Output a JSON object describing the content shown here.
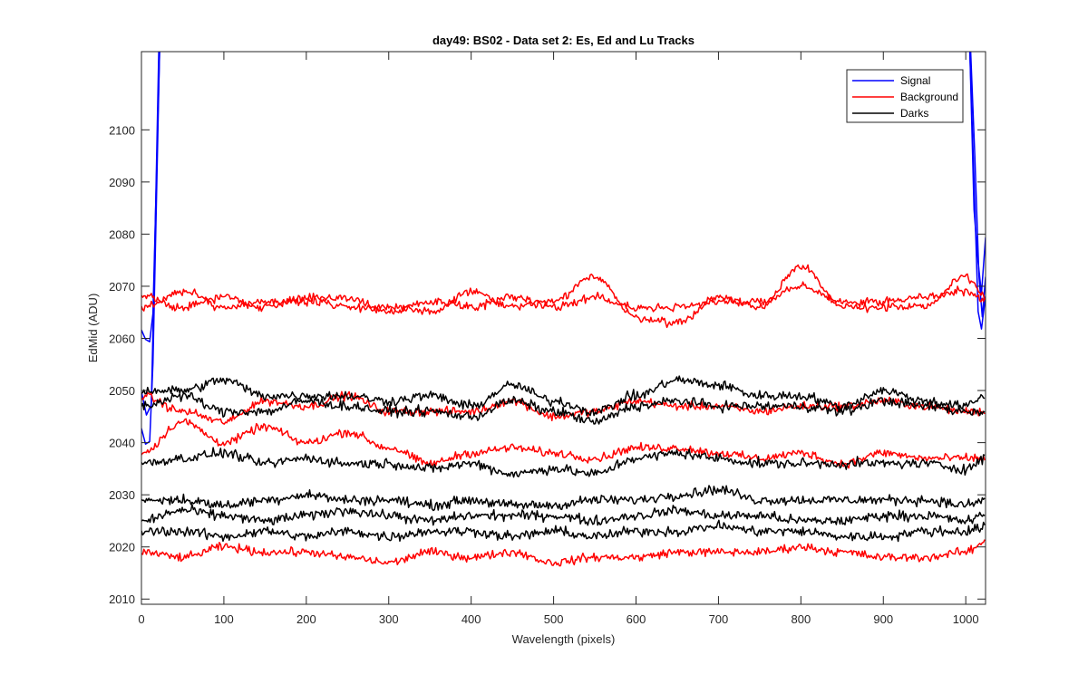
{
  "chart_data": {
    "type": "line",
    "title": "day49: BS02 - Data set 2: Es, Ed and Lu Tracks",
    "xlabel": "Wavelength (pixels)",
    "ylabel": "EdMid (ADU)",
    "xlim": [
      0,
      1024
    ],
    "ylim": [
      2009,
      2115
    ],
    "x_ticks": [
      0,
      100,
      200,
      300,
      400,
      500,
      600,
      700,
      800,
      900,
      1000
    ],
    "y_ticks": [
      2010,
      2020,
      2030,
      2040,
      2050,
      2060,
      2070,
      2080,
      2090,
      2100
    ],
    "grid": false,
    "legend": {
      "position": "top-right",
      "entries": [
        {
          "label": "Signal",
          "color": "#0000ff"
        },
        {
          "label": "Background",
          "color": "#ff0000"
        },
        {
          "label": "Darks",
          "color": "#000000"
        }
      ]
    },
    "series": [
      {
        "group": "Signal",
        "color": "#0000ff",
        "points": [
          [
            0,
            2062
          ],
          [
            5,
            2060
          ],
          [
            10,
            2059
          ],
          [
            14,
            2065
          ],
          [
            18,
            2090
          ],
          [
            22,
            2115
          ],
          [
            1005,
            2115
          ],
          [
            1010,
            2090
          ],
          [
            1015,
            2065
          ],
          [
            1019,
            2062
          ],
          [
            1024,
            2068
          ]
        ]
      },
      {
        "group": "Signal",
        "color": "#0000ff",
        "points": [
          [
            0,
            2043
          ],
          [
            5,
            2040
          ],
          [
            10,
            2040
          ],
          [
            14,
            2055
          ],
          [
            18,
            2085
          ],
          [
            22,
            2115
          ],
          [
            1005,
            2115
          ],
          [
            1010,
            2085
          ],
          [
            1015,
            2075
          ],
          [
            1019,
            2068
          ],
          [
            1024,
            2080
          ]
        ]
      },
      {
        "group": "Signal",
        "color": "#0000ff",
        "points": [
          [
            0,
            2050
          ],
          [
            6,
            2045
          ],
          [
            12,
            2048
          ],
          [
            16,
            2075
          ],
          [
            21,
            2115
          ],
          [
            1006,
            2115
          ],
          [
            1011,
            2095
          ],
          [
            1016,
            2072
          ],
          [
            1020,
            2064
          ],
          [
            1024,
            2072
          ]
        ]
      },
      {
        "group": "Background",
        "color": "#ff0000",
        "points": [
          [
            0,
            2066
          ],
          [
            50,
            2069
          ],
          [
            100,
            2066
          ],
          [
            150,
            2067
          ],
          [
            200,
            2067
          ],
          [
            250,
            2068
          ],
          [
            300,
            2065
          ],
          [
            350,
            2067
          ],
          [
            400,
            2066
          ],
          [
            450,
            2068
          ],
          [
            500,
            2066
          ],
          [
            550,
            2068
          ],
          [
            600,
            2066
          ],
          [
            650,
            2066
          ],
          [
            700,
            2067
          ],
          [
            750,
            2067
          ],
          [
            800,
            2070
          ],
          [
            850,
            2067
          ],
          [
            900,
            2067
          ],
          [
            950,
            2068
          ],
          [
            1000,
            2069
          ],
          [
            1024,
            2067
          ]
        ]
      },
      {
        "group": "Background",
        "color": "#ff0000",
        "points": [
          [
            0,
            2068
          ],
          [
            50,
            2066
          ],
          [
            100,
            2068
          ],
          [
            150,
            2066
          ],
          [
            200,
            2068
          ],
          [
            250,
            2066
          ],
          [
            300,
            2066
          ],
          [
            350,
            2065
          ],
          [
            400,
            2069
          ],
          [
            450,
            2066
          ],
          [
            500,
            2067
          ],
          [
            550,
            2072
          ],
          [
            600,
            2064
          ],
          [
            650,
            2063
          ],
          [
            700,
            2068
          ],
          [
            750,
            2066
          ],
          [
            800,
            2074
          ],
          [
            850,
            2066
          ],
          [
            900,
            2066
          ],
          [
            950,
            2066
          ],
          [
            1000,
            2072
          ],
          [
            1024,
            2068
          ]
        ]
      },
      {
        "group": "Background",
        "color": "#ff0000",
        "points": [
          [
            0,
            2049
          ],
          [
            50,
            2046
          ],
          [
            100,
            2044
          ],
          [
            150,
            2048
          ],
          [
            200,
            2047
          ],
          [
            250,
            2049
          ],
          [
            300,
            2046
          ],
          [
            350,
            2046
          ],
          [
            400,
            2046
          ],
          [
            450,
            2048
          ],
          [
            500,
            2045
          ],
          [
            550,
            2046
          ],
          [
            600,
            2048
          ],
          [
            650,
            2047
          ],
          [
            700,
            2047
          ],
          [
            750,
            2046
          ],
          [
            800,
            2047
          ],
          [
            850,
            2047
          ],
          [
            900,
            2048
          ],
          [
            950,
            2047
          ],
          [
            1000,
            2046
          ],
          [
            1024,
            2046
          ]
        ]
      },
      {
        "group": "Background",
        "color": "#ff0000",
        "points": [
          [
            0,
            2038
          ],
          [
            50,
            2044
          ],
          [
            100,
            2040
          ],
          [
            150,
            2043
          ],
          [
            200,
            2040
          ],
          [
            250,
            2042
          ],
          [
            300,
            2039
          ],
          [
            350,
            2036
          ],
          [
            400,
            2038
          ],
          [
            450,
            2039
          ],
          [
            500,
            2038
          ],
          [
            550,
            2037
          ],
          [
            600,
            2039
          ],
          [
            650,
            2039
          ],
          [
            700,
            2038
          ],
          [
            750,
            2037
          ],
          [
            800,
            2038
          ],
          [
            850,
            2036
          ],
          [
            900,
            2038
          ],
          [
            950,
            2037
          ],
          [
            1000,
            2037
          ],
          [
            1024,
            2037
          ]
        ]
      },
      {
        "group": "Background",
        "color": "#ff0000",
        "points": [
          [
            0,
            2019
          ],
          [
            50,
            2018
          ],
          [
            100,
            2020
          ],
          [
            150,
            2019
          ],
          [
            200,
            2019
          ],
          [
            250,
            2018
          ],
          [
            300,
            2017
          ],
          [
            350,
            2019
          ],
          [
            400,
            2018
          ],
          [
            450,
            2019
          ],
          [
            500,
            2017
          ],
          [
            550,
            2018
          ],
          [
            600,
            2018
          ],
          [
            650,
            2019
          ],
          [
            700,
            2019
          ],
          [
            750,
            2019
          ],
          [
            800,
            2020
          ],
          [
            850,
            2019
          ],
          [
            900,
            2018
          ],
          [
            950,
            2018
          ],
          [
            1000,
            2019
          ],
          [
            1024,
            2021
          ]
        ]
      },
      {
        "group": "Darks",
        "color": "#000000",
        "points": [
          [
            0,
            2050
          ],
          [
            50,
            2050
          ],
          [
            100,
            2052
          ],
          [
            150,
            2049
          ],
          [
            200,
            2049
          ],
          [
            250,
            2049
          ],
          [
            300,
            2048
          ],
          [
            350,
            2049
          ],
          [
            400,
            2047
          ],
          [
            450,
            2051
          ],
          [
            500,
            2048
          ],
          [
            550,
            2046
          ],
          [
            600,
            2049
          ],
          [
            650,
            2052
          ],
          [
            700,
            2051
          ],
          [
            750,
            2049
          ],
          [
            800,
            2049
          ],
          [
            850,
            2047
          ],
          [
            900,
            2050
          ],
          [
            950,
            2048
          ],
          [
            1000,
            2047
          ],
          [
            1024,
            2049
          ]
        ]
      },
      {
        "group": "Darks",
        "color": "#000000",
        "points": [
          [
            0,
            2047
          ],
          [
            50,
            2049
          ],
          [
            100,
            2046
          ],
          [
            150,
            2046
          ],
          [
            200,
            2048
          ],
          [
            250,
            2047
          ],
          [
            300,
            2046
          ],
          [
            350,
            2046
          ],
          [
            400,
            2045
          ],
          [
            450,
            2048
          ],
          [
            500,
            2046
          ],
          [
            550,
            2044
          ],
          [
            600,
            2047
          ],
          [
            650,
            2048
          ],
          [
            700,
            2047
          ],
          [
            750,
            2047
          ],
          [
            800,
            2047
          ],
          [
            850,
            2046
          ],
          [
            900,
            2048
          ],
          [
            950,
            2047
          ],
          [
            1000,
            2046
          ],
          [
            1024,
            2046
          ]
        ]
      },
      {
        "group": "Darks",
        "color": "#000000",
        "points": [
          [
            0,
            2036
          ],
          [
            50,
            2037
          ],
          [
            100,
            2038
          ],
          [
            150,
            2036
          ],
          [
            200,
            2037
          ],
          [
            250,
            2036
          ],
          [
            300,
            2036
          ],
          [
            350,
            2035
          ],
          [
            400,
            2036
          ],
          [
            450,
            2034
          ],
          [
            500,
            2035
          ],
          [
            550,
            2034
          ],
          [
            600,
            2037
          ],
          [
            650,
            2038
          ],
          [
            700,
            2037
          ],
          [
            750,
            2036
          ],
          [
            800,
            2036
          ],
          [
            850,
            2036
          ],
          [
            900,
            2036
          ],
          [
            950,
            2036
          ],
          [
            1000,
            2035
          ],
          [
            1024,
            2037
          ]
        ]
      },
      {
        "group": "Darks",
        "color": "#000000",
        "points": [
          [
            0,
            2029
          ],
          [
            50,
            2029
          ],
          [
            100,
            2028
          ],
          [
            150,
            2029
          ],
          [
            200,
            2030
          ],
          [
            250,
            2029
          ],
          [
            300,
            2029
          ],
          [
            350,
            2028
          ],
          [
            400,
            2029
          ],
          [
            450,
            2028
          ],
          [
            500,
            2028
          ],
          [
            550,
            2029
          ],
          [
            600,
            2029
          ],
          [
            650,
            2030
          ],
          [
            700,
            2031
          ],
          [
            750,
            2029
          ],
          [
            800,
            2029
          ],
          [
            850,
            2029
          ],
          [
            900,
            2029
          ],
          [
            950,
            2029
          ],
          [
            1000,
            2028
          ],
          [
            1024,
            2029
          ]
        ]
      },
      {
        "group": "Darks",
        "color": "#000000",
        "points": [
          [
            0,
            2025
          ],
          [
            50,
            2027
          ],
          [
            100,
            2026
          ],
          [
            150,
            2025
          ],
          [
            200,
            2026
          ],
          [
            250,
            2027
          ],
          [
            300,
            2026
          ],
          [
            350,
            2025
          ],
          [
            400,
            2026
          ],
          [
            450,
            2026
          ],
          [
            500,
            2026
          ],
          [
            550,
            2025
          ],
          [
            600,
            2026
          ],
          [
            650,
            2027
          ],
          [
            700,
            2026
          ],
          [
            750,
            2026
          ],
          [
            800,
            2025
          ],
          [
            850,
            2025
          ],
          [
            900,
            2026
          ],
          [
            950,
            2026
          ],
          [
            1000,
            2025
          ],
          [
            1024,
            2026
          ]
        ]
      },
      {
        "group": "Darks",
        "color": "#000000",
        "points": [
          [
            0,
            2023
          ],
          [
            50,
            2023
          ],
          [
            100,
            2022
          ],
          [
            150,
            2023
          ],
          [
            200,
            2022
          ],
          [
            250,
            2023
          ],
          [
            300,
            2022
          ],
          [
            350,
            2023
          ],
          [
            400,
            2023
          ],
          [
            450,
            2022
          ],
          [
            500,
            2023
          ],
          [
            550,
            2022
          ],
          [
            600,
            2023
          ],
          [
            650,
            2023
          ],
          [
            700,
            2024
          ],
          [
            750,
            2023
          ],
          [
            800,
            2023
          ],
          [
            850,
            2022
          ],
          [
            900,
            2022
          ],
          [
            950,
            2023
          ],
          [
            1000,
            2023
          ],
          [
            1024,
            2024
          ]
        ]
      }
    ]
  }
}
